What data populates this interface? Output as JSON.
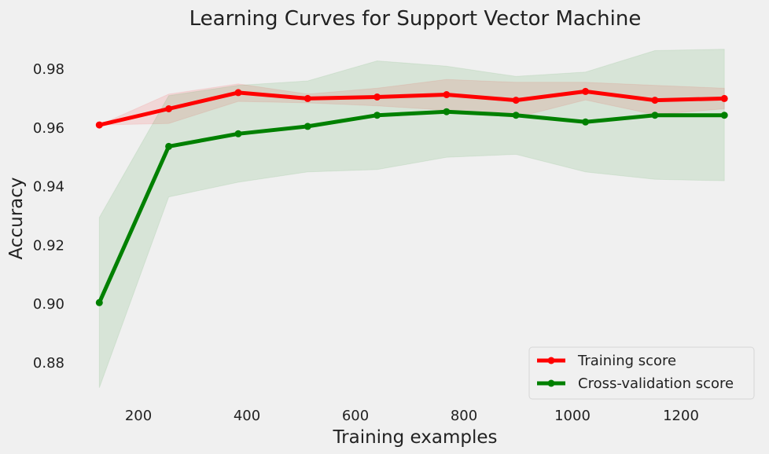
{
  "chart_data": {
    "type": "line",
    "title": "Learning Curves for Support Vector Machine",
    "xlabel": "Training examples",
    "ylabel": "Accuracy",
    "xlim": [
      110,
      1300
    ],
    "ylim": [
      0.868,
      0.989
    ],
    "xticks": [
      200,
      400,
      600,
      800,
      1000,
      1200
    ],
    "yticks": [
      0.88,
      0.9,
      0.92,
      0.94,
      0.96,
      0.98
    ],
    "x": [
      128,
      256,
      384,
      512,
      640,
      768,
      896,
      1024,
      1152,
      1280
    ],
    "grid": false,
    "legend_position": "bottom-right",
    "series": [
      {
        "name": "Training score",
        "color": "#ff0000",
        "values": [
          0.961,
          0.9665,
          0.972,
          0.97,
          0.9705,
          0.9713,
          0.9694,
          0.9724,
          0.9694,
          0.97
        ],
        "upper": [
          0.961,
          0.9715,
          0.975,
          0.9715,
          0.9735,
          0.9765,
          0.9755,
          0.9755,
          0.9745,
          0.9735
        ],
        "lower": [
          0.961,
          0.9615,
          0.969,
          0.9685,
          0.9675,
          0.966,
          0.9635,
          0.9695,
          0.9645,
          0.9665
        ]
      },
      {
        "name": "Cross-validation score",
        "color": "#008000",
        "values": [
          0.9005,
          0.9537,
          0.958,
          0.9605,
          0.9643,
          0.9655,
          0.9643,
          0.962,
          0.9643,
          0.9643
        ],
        "upper": [
          0.9295,
          0.971,
          0.9745,
          0.976,
          0.9828,
          0.981,
          0.9775,
          0.979,
          0.9863,
          0.9868
        ],
        "lower": [
          0.8715,
          0.9365,
          0.9415,
          0.945,
          0.9458,
          0.95,
          0.951,
          0.945,
          0.9425,
          0.942
        ]
      }
    ]
  }
}
